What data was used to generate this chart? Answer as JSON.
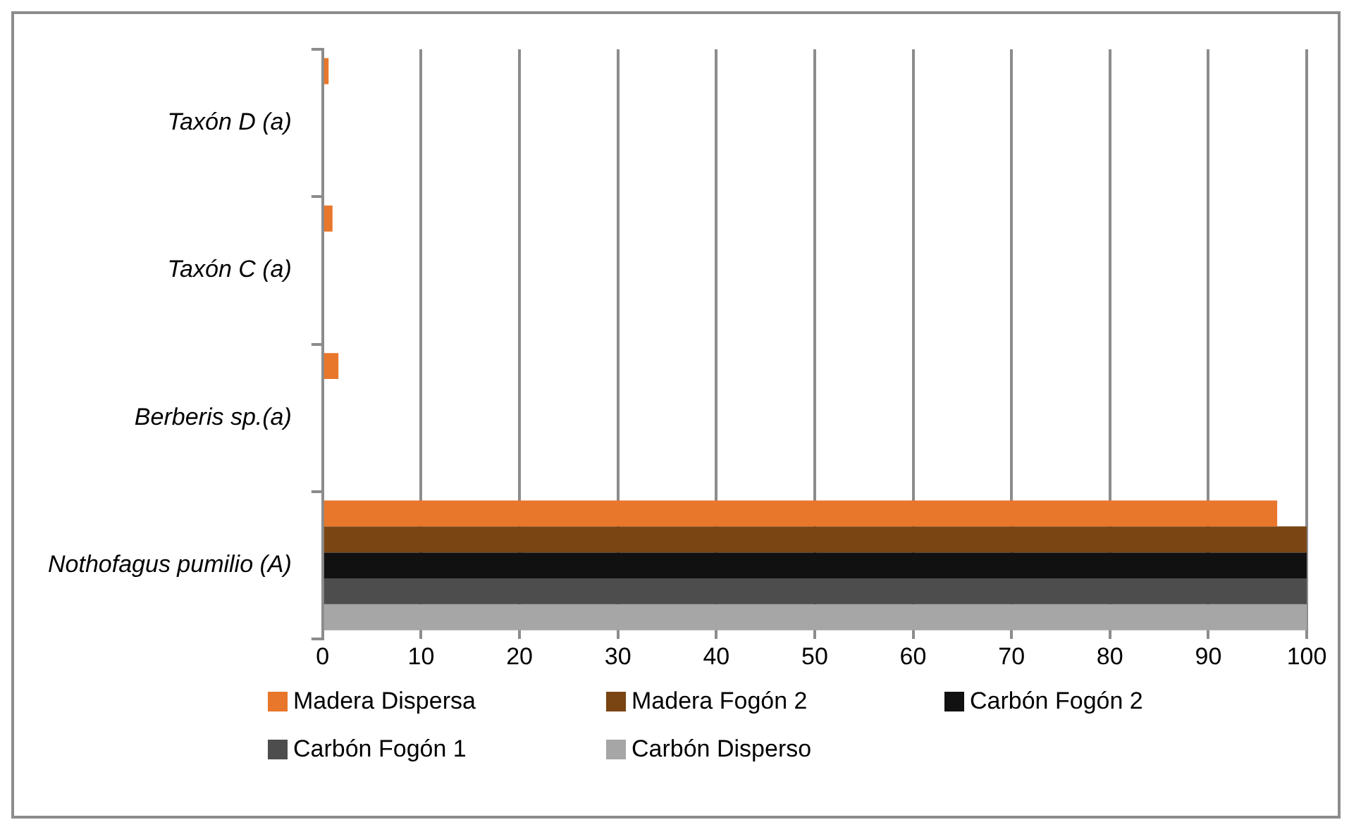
{
  "chart_data": {
    "type": "bar",
    "orientation": "horizontal",
    "categories": [
      "Taxón D (a)",
      "Taxón C (a)",
      "Berberis sp.(a)",
      "Nothofagus pumilio (A)"
    ],
    "series": [
      {
        "name": "Madera Dispersa",
        "color": "#e8762b",
        "values": [
          0.6,
          1,
          1.6,
          97
        ]
      },
      {
        "name": "Madera Fogón 2",
        "color": "#7a4513",
        "values": [
          null,
          null,
          null,
          100
        ]
      },
      {
        "name": "Carbón Fogón 2",
        "color": "#111111",
        "values": [
          null,
          null,
          null,
          100
        ]
      },
      {
        "name": "Carbón Fogón 1",
        "color": "#4d4d4d",
        "values": [
          null,
          null,
          null,
          100
        ]
      },
      {
        "name": "Carbón Disperso",
        "color": "#a6a6a6",
        "values": [
          null,
          null,
          null,
          100
        ]
      }
    ],
    "xlim": [
      0,
      100
    ],
    "xticks": [
      0,
      10,
      20,
      30,
      40,
      50,
      60,
      70,
      80,
      90,
      100
    ],
    "grid": "x",
    "legend": "bottom"
  }
}
